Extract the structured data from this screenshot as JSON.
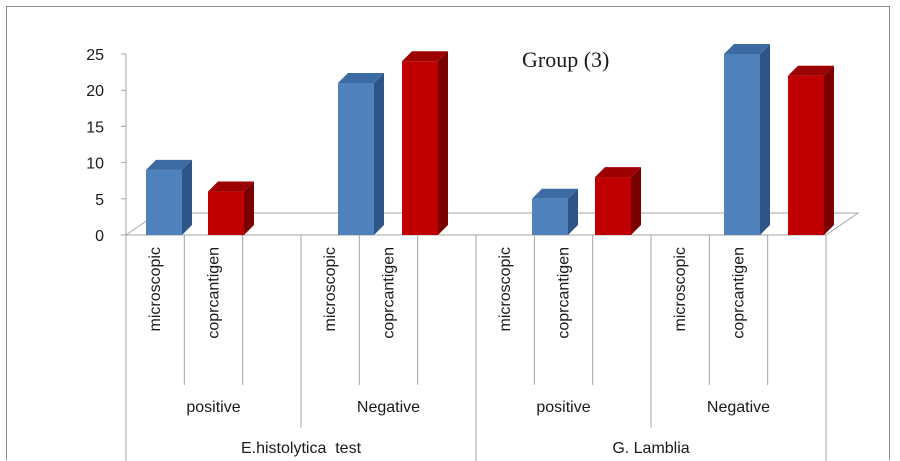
{
  "chart_data": {
    "type": "bar",
    "title": "Group (3)",
    "ylim": [
      0,
      25
    ],
    "yticks": [
      0,
      5,
      10,
      15,
      20,
      25
    ],
    "grid": false,
    "categories": [
      {
        "test": "E.histolytica  test",
        "result": "positive",
        "method": "microscopic"
      },
      {
        "test": "E.histolytica  test",
        "result": "positive",
        "method": "coprcantigen"
      },
      {
        "test": "E.histolytica  test",
        "result": "Negative",
        "method": "microscopic"
      },
      {
        "test": "E.histolytica  test",
        "result": "Negative",
        "method": "coprcantigen"
      },
      {
        "test": "G. Lamblia",
        "result": "positive",
        "method": "microscopic"
      },
      {
        "test": "G. Lamblia",
        "result": "positive",
        "method": "coprcantigen"
      },
      {
        "test": "G. Lamblia",
        "result": "Negative",
        "method": "microscopic"
      },
      {
        "test": "G. Lamblia",
        "result": "Negative",
        "method": "coprcantigen"
      }
    ],
    "values": [
      9,
      6,
      21,
      24,
      5,
      8,
      25,
      22
    ],
    "level2_labels": [
      "positive",
      "Negative",
      "positive",
      "Negative"
    ],
    "level3_labels": [
      "E.histolytica  test",
      "G. Lamblia"
    ],
    "colors": {
      "microscopic": {
        "front": "#4f81bd",
        "side": "#2e5585",
        "top": "#3c6aa3"
      },
      "coprcantigen": {
        "front": "#c00000",
        "side": "#7a0000",
        "top": "#9c0000"
      }
    }
  }
}
